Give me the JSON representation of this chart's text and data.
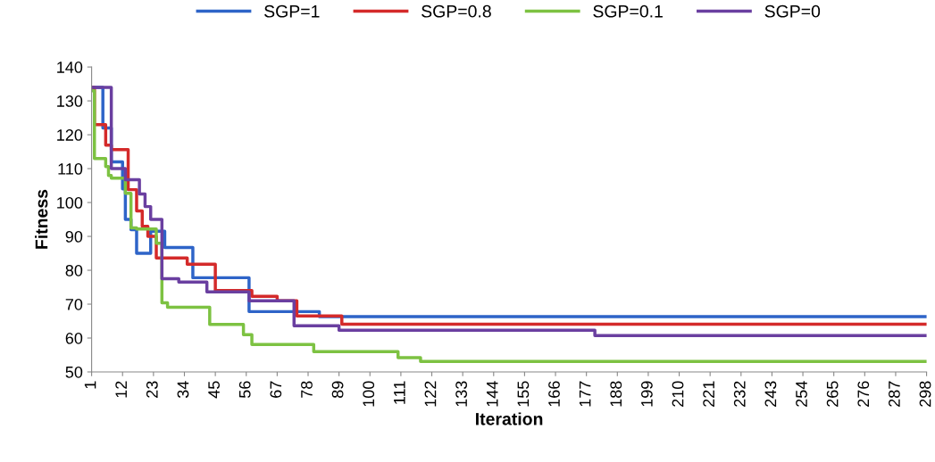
{
  "chart_data": {
    "type": "step",
    "xlabel": "Iteration",
    "ylabel": "Fitness",
    "xlim": [
      1,
      298
    ],
    "xticks": [
      1,
      12,
      23,
      34,
      45,
      56,
      67,
      78,
      89,
      100,
      111,
      122,
      133,
      144,
      155,
      166,
      177,
      188,
      199,
      210,
      221,
      232,
      243,
      254,
      265,
      276,
      287,
      298
    ],
    "ylim": [
      50,
      140
    ],
    "yticks": [
      50,
      60,
      70,
      80,
      90,
      100,
      110,
      120,
      130,
      140
    ],
    "grid": false,
    "legend": "top",
    "marker": "none",
    "line_style": "solid",
    "series": [
      {
        "name": "SGP=1",
        "color": "#2e64c8",
        "x": [
          1,
          5,
          8,
          12,
          13,
          15,
          17,
          22,
          27,
          37,
          57,
          63,
          82,
          298
        ],
        "values": [
          134,
          122,
          112,
          104,
          95,
          92,
          85,
          91.5,
          86.7,
          77.8,
          67.8,
          67.8,
          66.3,
          66.3
        ]
      },
      {
        "name": "SGP=0.8",
        "color": "#d42a2a",
        "x": [
          1,
          2,
          6,
          8,
          14,
          17,
          19,
          21,
          24,
          35,
          45,
          58,
          67,
          74,
          90,
          298
        ],
        "values": [
          134,
          123,
          116.9,
          115.6,
          103.8,
          97.5,
          93,
          90,
          83.6,
          81.8,
          74,
          72.3,
          71,
          66.5,
          64.1,
          64.1
        ]
      },
      {
        "name": "SGP=0.1",
        "color": "#7dc242",
        "x": [
          1,
          2,
          6,
          7,
          8,
          13,
          15,
          17,
          24,
          26,
          28,
          43,
          55,
          58,
          80,
          110,
          118,
          298
        ],
        "values": [
          133,
          113,
          110.6,
          108,
          107.2,
          102.7,
          92.5,
          92.2,
          88,
          70.4,
          69.1,
          64,
          61,
          58.1,
          56,
          54.2,
          53.1,
          53.1
        ]
      },
      {
        "name": "SGP=0",
        "color": "#6a3fa0",
        "x": [
          1,
          7,
          8,
          13,
          18,
          20,
          22,
          26,
          32,
          42,
          45,
          57,
          73,
          89,
          180,
          298
        ],
        "values": [
          134,
          134,
          110,
          106.7,
          102.5,
          98.8,
          95,
          77.5,
          76.5,
          73.6,
          73.6,
          71,
          63.6,
          62.3,
          60.7,
          60.7
        ]
      }
    ]
  }
}
